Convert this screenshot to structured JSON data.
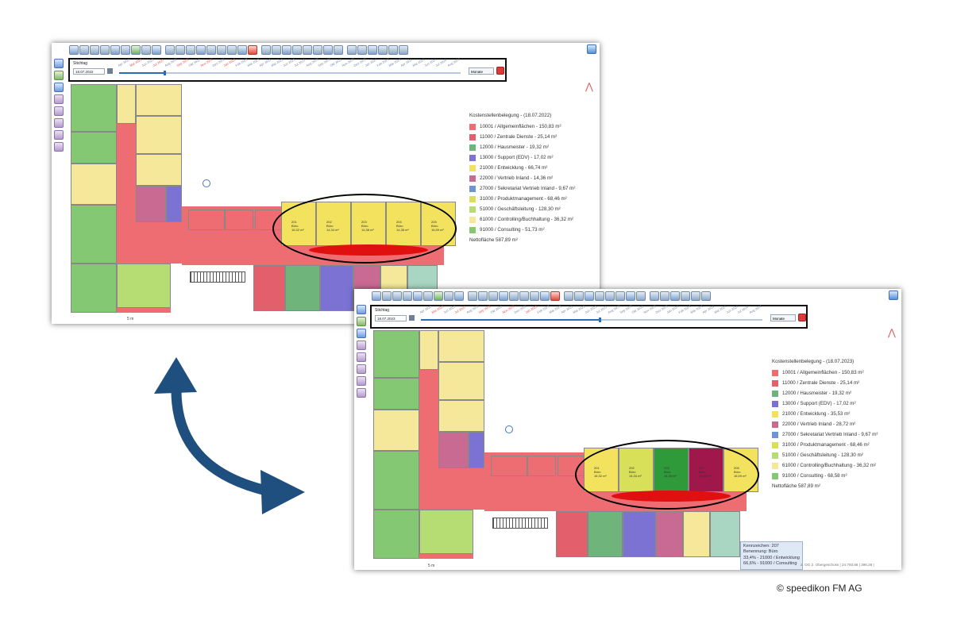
{
  "copyright": "© speedikon FM AG",
  "colors": {
    "10001": "#ee6d72",
    "11000": "#e35f6c",
    "12000": "#6fb47a",
    "13000": "#7b72d3",
    "21000": "#f2e25e",
    "22000": "#c96a93",
    "27000": "#7092d6",
    "31000": "#d8e05a",
    "51000": "#b5dd74",
    "61000": "#f5e89a",
    "91000": "#84c873",
    "accent": "#2a6bb6",
    "highlight": "#e01010"
  },
  "screens": {
    "a": {
      "stichtag_label": "Stichtag",
      "date_value": "18.07.2022",
      "unit": "Monate",
      "months": [
        "Apr 2022",
        "Mai 2022",
        "Jun 2022",
        "Jul 2022",
        "Aug 2022",
        "Sep 2022",
        "Okt 2022",
        "Nov 2022",
        "Dez 2022",
        "Jan 2023",
        "Feb 2023",
        "Mär 2023",
        "Apr 2023",
        "Mai 2023",
        "Jun 2023",
        "Jul 2023",
        "Aug 2023",
        "Sep 2023",
        "Okt 2023",
        "Nov 2023",
        "Dez 2023",
        "Jan 2024",
        "Feb 2024",
        "Mär 2024",
        "Apr 2024",
        "Mai 2024",
        "Jun 2024",
        "Jul 2024",
        "Aug 2024"
      ],
      "slider_progress": 0.13,
      "legend_title": "Kostenstellenbelegung - (18.07.2022)",
      "legend": [
        {
          "key": "10001",
          "label": "10001 / Allgemeinflächen - 150,83 m²"
        },
        {
          "key": "11000",
          "label": "11000 / Zentrale Dienste - 25,14 m²"
        },
        {
          "key": "12000",
          "label": "12000 / Hausmeister - 19,32 m²"
        },
        {
          "key": "13000",
          "label": "13000 / Support (EDV) - 17,02 m²"
        },
        {
          "key": "21000",
          "label": "21000 / Entwicklung - 66,74 m²"
        },
        {
          "key": "22000",
          "label": "22000 / Vertrieb Inland - 14,36 m²"
        },
        {
          "key": "27000",
          "label": "27000 / Sekretariat Vertrieb Inland - 9,67 m²"
        },
        {
          "key": "31000",
          "label": "31000 / Produktmanagement - 68,46 m²"
        },
        {
          "key": "51000",
          "label": "51000 / Geschäftsleitung - 128,30 m²"
        },
        {
          "key": "61000",
          "label": "61000 / Controlling/Buchhaltung - 36,32 m²"
        },
        {
          "key": "91000",
          "label": "91000 / Consulting - 51,73 m²"
        }
      ],
      "net_area": "Nettofläche 587,89 m²",
      "scale_label": "5 m",
      "highlight_rooms": [
        {
          "no": "201",
          "name": "Büro",
          "area": "16,32 m²"
        },
        {
          "no": "202",
          "name": "Büro",
          "area": "14,34 m²"
        },
        {
          "no": "203",
          "name": "Büro",
          "area": "14,38 m²"
        },
        {
          "no": "204",
          "name": "Büro",
          "area": "14,38 m²"
        },
        {
          "no": "205",
          "name": "Büro",
          "area": "16,59 m²"
        }
      ]
    },
    "b": {
      "stichtag_label": "Stichtag",
      "date_value": "18.07.2023",
      "unit": "Monate",
      "months": [
        "Apr 2022",
        "Mai 2022",
        "Jun 2022",
        "Jul 2022",
        "Aug 2022",
        "Sep 2022",
        "Okt 2022",
        "Nov 2022",
        "Dez 2022",
        "Jan 2023",
        "Feb 2023",
        "Mär 2023",
        "Apr 2023",
        "Mai 2023",
        "Jun 2023",
        "Jul 2023",
        "Aug 2023",
        "Sep 2023",
        "Okt 2023",
        "Nov 2023",
        "Dez 2023",
        "Jan 2024",
        "Feb 2024",
        "Mär 2024",
        "Apr 2024",
        "Mai 2024",
        "Jun 2024",
        "Jul 2024",
        "Aug 2024"
      ],
      "slider_progress": 0.52,
      "legend_title": "Kostenstellenbelegung - (18.07.2023)",
      "legend": [
        {
          "key": "10001",
          "label": "10001 / Allgemeinflächen - 150,83 m²"
        },
        {
          "key": "11000",
          "label": "11000 / Zentrale Dienste - 25,14 m²"
        },
        {
          "key": "12000",
          "label": "12000 / Hausmeister - 19,32 m²"
        },
        {
          "key": "13000",
          "label": "13000 / Support (EDV) - 17,02 m²"
        },
        {
          "key": "21000",
          "label": "21000 / Entwicklung - 35,53 m²"
        },
        {
          "key": "22000",
          "label": "22000 / Vertrieb Inland - 28,72 m²"
        },
        {
          "key": "27000",
          "label": "27000 / Sekretariat Vertrieb Inland - 9,67 m²"
        },
        {
          "key": "31000",
          "label": "31000 / Produktmanagement - 68,46 m²"
        },
        {
          "key": "51000",
          "label": "51000 / Geschäftsleitung - 128,30 m²"
        },
        {
          "key": "61000",
          "label": "61000 / Controlling/Buchhaltung - 36,32 m²"
        },
        {
          "key": "91000",
          "label": "91000 / Consulting - 68,58 m²"
        }
      ],
      "net_area": "Nettofläche 587,89 m²",
      "scale_label": "5 m",
      "tooltip": [
        "Kennzeichen: 207",
        "Benennung: Büro",
        "33,4% - 21000 / Entwicklung",
        "66,6% - 91000 / Consulting"
      ],
      "status": "2. OG 2. Obergeschoss | 24.793,66 | 396,28 |",
      "highlight_rooms": [
        {
          "no": "201",
          "name": "Büro",
          "area": "16,32 m²"
        },
        {
          "no": "202",
          "name": "Büro",
          "area": "14,34 m²"
        },
        {
          "no": "203",
          "name": "Büro",
          "area": "14,38 m²"
        },
        {
          "no": "204",
          "name": "Büro",
          "area": "14,38 m²"
        },
        {
          "no": "205",
          "name": "Büro",
          "area": "16,59 m²"
        }
      ]
    }
  }
}
